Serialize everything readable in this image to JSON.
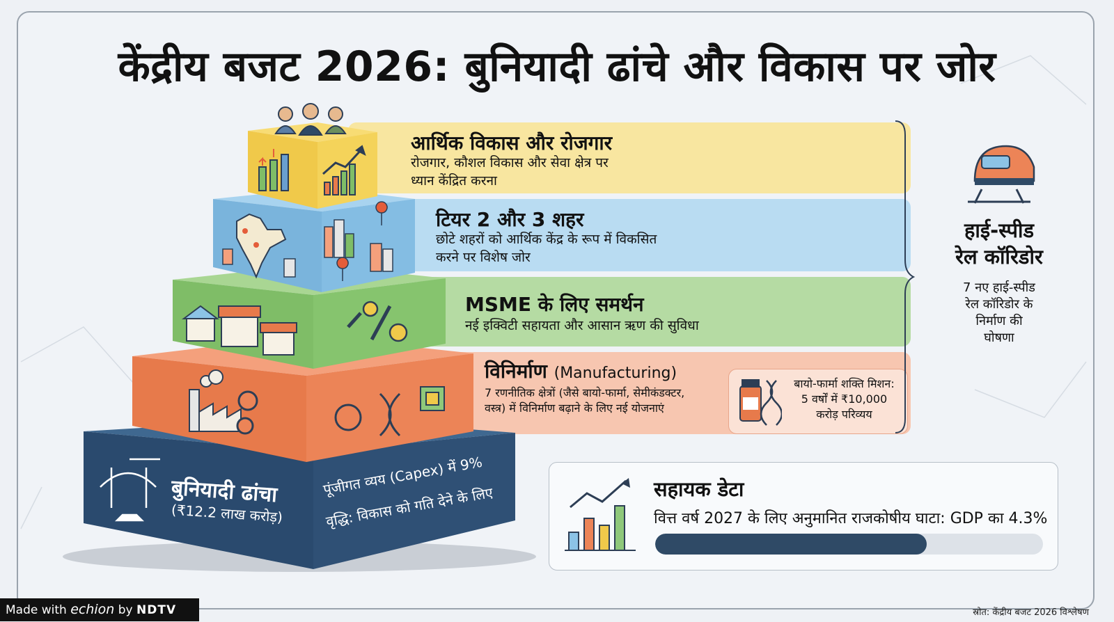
{
  "title": "केंद्रीय बजट 2026: बुनियादी ढांचे और विकास पर जोर",
  "tiers": [
    {
      "title": "आर्थिक विकास और रोजगार",
      "desc_line1": "रोजगार, कौशल विकास और सेवा क्षेत्र पर",
      "desc_line2": "ध्यान केंद्रित करना",
      "color": "#f6e08a"
    },
    {
      "title": "टियर 2 और 3 शहर",
      "desc_line1": "छोटे शहरों को आर्थिक केंद्र के रूप में विकसित",
      "desc_line2": "करने पर विशेष जोर",
      "color": "#8cc3e6"
    },
    {
      "title": "MSME के लिए समर्थन",
      "desc_line1": "नई इक्विटी सहायता और आसान ऋण की सुविधा",
      "desc_line2": "",
      "color": "#8fc87a"
    },
    {
      "title_main": "विनिर्माण",
      "title_sub": "(Manufacturing)",
      "desc_line1": "7 रणनीतिक क्षेत्रों (जैसे बायो-फार्मा, सेमीकंडक्टर,",
      "desc_line2": "वस्त्र) में विनिर्माण बढ़ाने के लिए नई योजनाएं",
      "color": "#ef8a5c"
    }
  ],
  "base": {
    "title": "बुनियादी ढांचा",
    "subtitle": "(₹12.2 लाख करोड़)",
    "desc_line1": "पूंजीगत व्यय (Capex) में 9%",
    "desc_line2": "वृद्धि: विकास को गति देने के लिए",
    "color": "#2f5075"
  },
  "pharma": {
    "line1": "बायो-फार्मा शक्ति मिशन:",
    "line2": "5 वर्षों में ₹10,000",
    "line3": "करोड़ परिव्यय"
  },
  "side": {
    "title_line1": "हाई-स्पीड",
    "title_line2": "रेल कॉरिडोर",
    "desc_line1": "7 नए हाई-स्पीड",
    "desc_line2": "रेल कॉरिडोर के",
    "desc_line3": "निर्माण की",
    "desc_line4": "घोषणा"
  },
  "supporting": {
    "title": "सहायक डेटा",
    "text": "वित्त वर्ष 2027 के लिए अनुमानित राजकोषीय घाटा: GDP का 4.3%",
    "progress_fraction": 0.7
  },
  "footer": {
    "made_with": "Made with",
    "echion": "echion",
    "by": "by",
    "ndtv": "NDTV"
  },
  "source": "स्रोत: केंद्रीय बजट 2026 विश्लेषण",
  "icons": [
    "people-icon",
    "growth-chart-icon",
    "india-map-icon",
    "city-buildings-icon",
    "location-pin-icon",
    "shop-icon",
    "wrench-gear-icon",
    "factory-icon",
    "gear-icon",
    "dna-icon",
    "chip-icon",
    "bridge-crane-icon",
    "medicine-bottle-icon",
    "train-icon",
    "bar-chart-icon"
  ]
}
